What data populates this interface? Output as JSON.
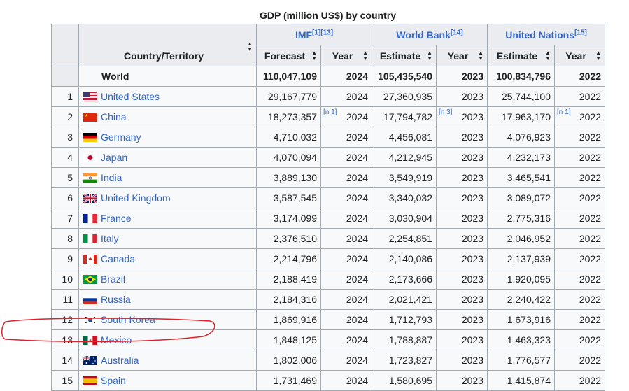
{
  "caption": "GDP (million US$) by country",
  "headers": {
    "country": "Country/Territory",
    "imf": "IMF",
    "imf_refs": "[1][13]",
    "wb": "World Bank",
    "wb_refs": "[14]",
    "un": "United Nations",
    "un_refs": "[15]",
    "forecast": "Forecast",
    "estimate_wb": "Estimate",
    "estimate_un": "Estimate",
    "year": "Year"
  },
  "world": {
    "label": "World",
    "imf": "110,047,109",
    "imf_year": "2024",
    "wb": "105,435,540",
    "wb_year": "2023",
    "un": "100,834,796",
    "un_year": "2022"
  },
  "rows": [
    {
      "rank": "1",
      "name": "United States",
      "flag": "us-flag",
      "imf": "29,167,779",
      "imf_year": "2024",
      "wb": "27,360,935",
      "wb_year": "2023",
      "un": "25,744,100",
      "un_year": "2022"
    },
    {
      "rank": "2",
      "name": "China",
      "flag": "china-flag",
      "imf": "18,273,357",
      "imf_year": "2024",
      "imf_note": "[n 1]",
      "wb": "17,794,782",
      "wb_year": "2023",
      "wb_note": "[n 3]",
      "un": "17,963,170",
      "un_year": "2022",
      "un_note": "[n 1]"
    },
    {
      "rank": "3",
      "name": "Germany",
      "flag": "germany-flag",
      "imf": "4,710,032",
      "imf_year": "2024",
      "wb": "4,456,081",
      "wb_year": "2023",
      "un": "4,076,923",
      "un_year": "2022"
    },
    {
      "rank": "4",
      "name": "Japan",
      "flag": "japan-flag",
      "imf": "4,070,094",
      "imf_year": "2024",
      "wb": "4,212,945",
      "wb_year": "2023",
      "un": "4,232,173",
      "un_year": "2022"
    },
    {
      "rank": "5",
      "name": "India",
      "flag": "india-flag",
      "imf": "3,889,130",
      "imf_year": "2024",
      "wb": "3,549,919",
      "wb_year": "2023",
      "un": "3,465,541",
      "un_year": "2022"
    },
    {
      "rank": "6",
      "name": "United Kingdom",
      "flag": "uk-flag",
      "imf": "3,587,545",
      "imf_year": "2024",
      "wb": "3,340,032",
      "wb_year": "2023",
      "un": "3,089,072",
      "un_year": "2022"
    },
    {
      "rank": "7",
      "name": "France",
      "flag": "france-flag",
      "imf": "3,174,099",
      "imf_year": "2024",
      "wb": "3,030,904",
      "wb_year": "2023",
      "un": "2,775,316",
      "un_year": "2022"
    },
    {
      "rank": "8",
      "name": "Italy",
      "flag": "italy-flag",
      "imf": "2,376,510",
      "imf_year": "2024",
      "wb": "2,254,851",
      "wb_year": "2023",
      "un": "2,046,952",
      "un_year": "2022"
    },
    {
      "rank": "9",
      "name": "Canada",
      "flag": "canada-flag",
      "imf": "2,214,796",
      "imf_year": "2024",
      "wb": "2,140,086",
      "wb_year": "2023",
      "un": "2,137,939",
      "un_year": "2022"
    },
    {
      "rank": "10",
      "name": "Brazil",
      "flag": "brazil-flag",
      "imf": "2,188,419",
      "imf_year": "2024",
      "wb": "2,173,666",
      "wb_year": "2023",
      "un": "1,920,095",
      "un_year": "2022"
    },
    {
      "rank": "11",
      "name": "Russia",
      "flag": "russia-flag",
      "imf": "2,184,316",
      "imf_year": "2024",
      "wb": "2,021,421",
      "wb_year": "2023",
      "un": "2,240,422",
      "un_year": "2022"
    },
    {
      "rank": "12",
      "name": "South Korea",
      "flag": "south-korea-flag",
      "imf": "1,869,916",
      "imf_year": "2024",
      "wb": "1,712,793",
      "wb_year": "2023",
      "un": "1,673,916",
      "un_year": "2022"
    },
    {
      "rank": "13",
      "name": "Mexico",
      "flag": "mexico-flag",
      "imf": "1,848,125",
      "imf_year": "2024",
      "wb": "1,788,887",
      "wb_year": "2023",
      "un": "1,463,323",
      "un_year": "2022"
    },
    {
      "rank": "14",
      "name": "Australia",
      "flag": "australia-flag",
      "imf": "1,802,006",
      "imf_year": "2024",
      "wb": "1,723,827",
      "wb_year": "2023",
      "un": "1,776,577",
      "un_year": "2022"
    },
    {
      "rank": "15",
      "name": "Spain",
      "flag": "spain-flag",
      "imf": "1,731,469",
      "imf_year": "2024",
      "wb": "1,580,695",
      "wb_year": "2023",
      "un": "1,415,874",
      "un_year": "2022"
    }
  ],
  "annotation": {
    "shape": "red-ellipse-highlight",
    "color": "#e0202a"
  }
}
